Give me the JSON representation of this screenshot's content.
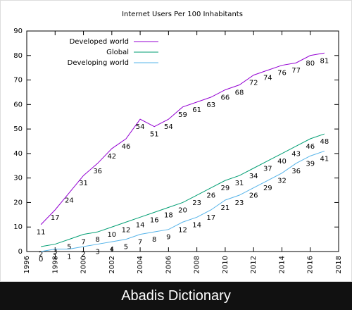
{
  "chart_data": {
    "type": "line",
    "title": "Internet Users Per 100 Inhabitants",
    "x": [
      1997,
      1998,
      1999,
      2000,
      2001,
      2002,
      2003,
      2004,
      2005,
      2006,
      2007,
      2008,
      2009,
      2010,
      2011,
      2012,
      2013,
      2014,
      2015,
      2016,
      2017
    ],
    "series": [
      {
        "name": "Developed world",
        "color": "#9400d3",
        "values": [
          11,
          17,
          24,
          31,
          36,
          42,
          46,
          54,
          51,
          54,
          59,
          61,
          63,
          66,
          68,
          72,
          74,
          76,
          77,
          80,
          81
        ]
      },
      {
        "name": "Global",
        "color": "#009e73",
        "values": [
          2,
          3,
          5,
          7,
          8,
          10,
          12,
          14,
          16,
          18,
          20,
          23,
          26,
          29,
          31,
          34,
          37,
          40,
          43,
          46,
          48
        ]
      },
      {
        "name": "Developing world",
        "color": "#56b4e9",
        "values": [
          0,
          1,
          1,
          2,
          3,
          4,
          5,
          7,
          8,
          9,
          12,
          14,
          17,
          21,
          23,
          26,
          29,
          32,
          36,
          39,
          41
        ]
      }
    ],
    "xlim": [
      1996,
      2018
    ],
    "xticks": [
      1996,
      1998,
      2000,
      2002,
      2004,
      2006,
      2008,
      2010,
      2012,
      2014,
      2016,
      2018
    ],
    "ylim": [
      0,
      90
    ],
    "yticks": [
      0,
      10,
      20,
      30,
      40,
      50,
      60,
      70,
      80,
      90
    ],
    "legend": "top-left",
    "grid": false
  },
  "footer": {
    "text": "Abadis Dictionary"
  }
}
